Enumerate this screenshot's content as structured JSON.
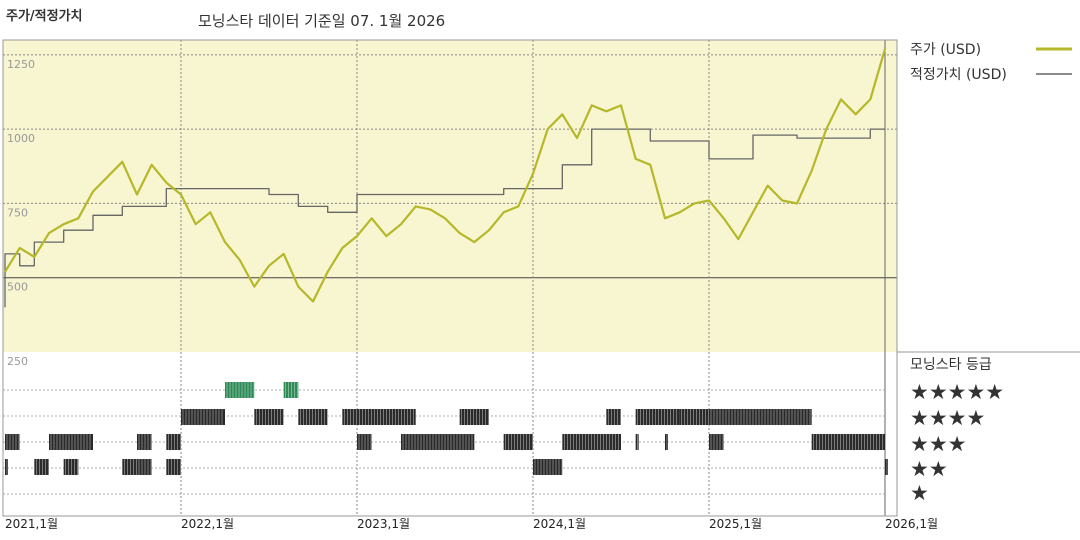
{
  "chart_data": {
    "type": "line",
    "title": "모닝스타 데이터 기준일 07. 1월 2026",
    "ylabel": "주가/적정가치",
    "ylim": [
      250,
      1300
    ],
    "y_ticks": [
      {
        "v": 1250,
        "label": "1250"
      },
      {
        "v": 1000,
        "label": "1000"
      },
      {
        "v": 750,
        "label": "750"
      },
      {
        "v": 500,
        "label": "500"
      },
      {
        "v": 250,
        "label": "250"
      }
    ],
    "xlim": [
      "2021-01",
      "2026-01"
    ],
    "x_ticks": [
      "2021,1월",
      "2022,1월",
      "2023,1월",
      "2024,1월",
      "2025,1월",
      "2026,1월"
    ],
    "legend": {
      "position": "right"
    },
    "grid": true,
    "series": [
      {
        "name": "주가 (USD)",
        "color": "#b5b829",
        "points": [
          [
            "2021-01",
            520
          ],
          [
            "2021-02",
            600
          ],
          [
            "2021-03",
            570
          ],
          [
            "2021-04",
            650
          ],
          [
            "2021-05",
            680
          ],
          [
            "2021-06",
            700
          ],
          [
            "2021-07",
            790
          ],
          [
            "2021-08",
            840
          ],
          [
            "2021-09",
            890
          ],
          [
            "2021-10",
            780
          ],
          [
            "2021-11",
            880
          ],
          [
            "2021-12",
            820
          ],
          [
            "2022-01",
            780
          ],
          [
            "2022-02",
            680
          ],
          [
            "2022-03",
            720
          ],
          [
            "2022-04",
            620
          ],
          [
            "2022-05",
            560
          ],
          [
            "2022-06",
            470
          ],
          [
            "2022-07",
            540
          ],
          [
            "2022-08",
            580
          ],
          [
            "2022-09",
            470
          ],
          [
            "2022-10",
            420
          ],
          [
            "2022-11",
            520
          ],
          [
            "2022-12",
            600
          ],
          [
            "2023-01",
            640
          ],
          [
            "2023-02",
            700
          ],
          [
            "2023-03",
            640
          ],
          [
            "2023-04",
            680
          ],
          [
            "2023-05",
            740
          ],
          [
            "2023-06",
            730
          ],
          [
            "2023-07",
            700
          ],
          [
            "2023-08",
            650
          ],
          [
            "2023-09",
            620
          ],
          [
            "2023-10",
            660
          ],
          [
            "2023-11",
            720
          ],
          [
            "2023-12",
            740
          ],
          [
            "2024-01",
            850
          ],
          [
            "2024-02",
            1000
          ],
          [
            "2024-03",
            1050
          ],
          [
            "2024-04",
            970
          ],
          [
            "2024-05",
            1080
          ],
          [
            "2024-06",
            1060
          ],
          [
            "2024-07",
            1080
          ],
          [
            "2024-08",
            900
          ],
          [
            "2024-09",
            880
          ],
          [
            "2024-10",
            700
          ],
          [
            "2024-11",
            720
          ],
          [
            "2024-12",
            750
          ],
          [
            "2025-01",
            760
          ],
          [
            "2025-02",
            700
          ],
          [
            "2025-03",
            630
          ],
          [
            "2025-04",
            720
          ],
          [
            "2025-05",
            810
          ],
          [
            "2025-06",
            760
          ],
          [
            "2025-07",
            750
          ],
          [
            "2025-08",
            860
          ],
          [
            "2025-09",
            1000
          ],
          [
            "2025-10",
            1100
          ],
          [
            "2025-11",
            1050
          ],
          [
            "2025-12",
            1100
          ],
          [
            "2026-01",
            1270
          ]
        ]
      },
      {
        "name": "적정가치 (USD)",
        "color": "#666666",
        "points": [
          [
            "2021-01",
            400
          ],
          [
            "2021-01",
            580
          ],
          [
            "2021-02",
            580
          ],
          [
            "2021-02",
            540
          ],
          [
            "2021-03",
            540
          ],
          [
            "2021-03",
            620
          ],
          [
            "2021-05",
            620
          ],
          [
            "2021-05",
            660
          ],
          [
            "2021-07",
            660
          ],
          [
            "2021-07",
            710
          ],
          [
            "2021-09",
            710
          ],
          [
            "2021-09",
            740
          ],
          [
            "2021-12",
            740
          ],
          [
            "2021-12",
            800
          ],
          [
            "2022-07",
            800
          ],
          [
            "2022-07",
            780
          ],
          [
            "2022-09",
            780
          ],
          [
            "2022-09",
            740
          ],
          [
            "2022-11",
            740
          ],
          [
            "2022-11",
            720
          ],
          [
            "2023-01",
            720
          ],
          [
            "2023-01",
            780
          ],
          [
            "2023-11",
            780
          ],
          [
            "2023-11",
            800
          ],
          [
            "2024-03",
            800
          ],
          [
            "2024-03",
            880
          ],
          [
            "2024-05",
            880
          ],
          [
            "2024-05",
            1000
          ],
          [
            "2024-09",
            1000
          ],
          [
            "2024-09",
            960
          ],
          [
            "2025-01",
            960
          ],
          [
            "2025-01",
            900
          ],
          [
            "2025-04",
            900
          ],
          [
            "2025-04",
            980
          ],
          [
            "2025-07",
            980
          ],
          [
            "2025-07",
            970
          ],
          [
            "2025-12",
            970
          ],
          [
            "2025-12",
            1000
          ],
          [
            "2026-01",
            1000
          ]
        ]
      }
    ],
    "rating_panel": {
      "title": "모닝스타 등급",
      "rows": [
        {
          "stars": "★★★★★",
          "color": "#2e8b57",
          "segments": [
            [
              "2022-04",
              "2022-06"
            ],
            [
              "2022-08",
              "2022-09"
            ]
          ]
        },
        {
          "stars": "★★★★",
          "color": "#2a2a2a",
          "segments": [
            [
              "2022-01",
              "2022-04"
            ],
            [
              "2022-06",
              "2022-08"
            ],
            [
              "2022-09",
              "2022-11"
            ],
            [
              "2022-12",
              "2023-05"
            ],
            [
              "2023-08",
              "2023-10"
            ],
            [
              "2024-06",
              "2024-07"
            ],
            [
              "2024-08",
              "2024-11"
            ],
            [
              "2024-11",
              "2025-01"
            ],
            [
              "2025-01",
              "2025-08"
            ]
          ]
        },
        {
          "stars": "★★★",
          "color": "#2a2a2a",
          "segments": [
            [
              "2021-01",
              "2021-02"
            ],
            [
              "2021-04",
              "2021-07"
            ],
            [
              "2021-10",
              "2021-11"
            ],
            [
              "2021-12",
              "2022-01"
            ],
            [
              "2023-01",
              "2023-02"
            ],
            [
              "2023-04",
              "2023-09"
            ],
            [
              "2023-11",
              "2024-01"
            ],
            [
              "2024-03",
              "2024-07"
            ],
            [
              "2024-08",
              "2024-08"
            ],
            [
              "2024-10",
              "2024-10"
            ],
            [
              "2025-01",
              "2025-02"
            ],
            [
              "2025-08",
              "2026-01"
            ]
          ]
        },
        {
          "stars": "★★",
          "color": "#2a2a2a",
          "segments": [
            [
              "2021-01",
              "2021-01"
            ],
            [
              "2021-03",
              "2021-04"
            ],
            [
              "2021-05",
              "2021-06"
            ],
            [
              "2021-09",
              "2021-10"
            ],
            [
              "2021-10",
              "2021-11"
            ],
            [
              "2021-12",
              "2022-01"
            ],
            [
              "2024-01",
              "2024-03"
            ],
            [
              "2026-01",
              "2026-01"
            ]
          ]
        },
        {
          "stars": "★",
          "color": "#2a2a2a",
          "segments": []
        }
      ]
    }
  }
}
